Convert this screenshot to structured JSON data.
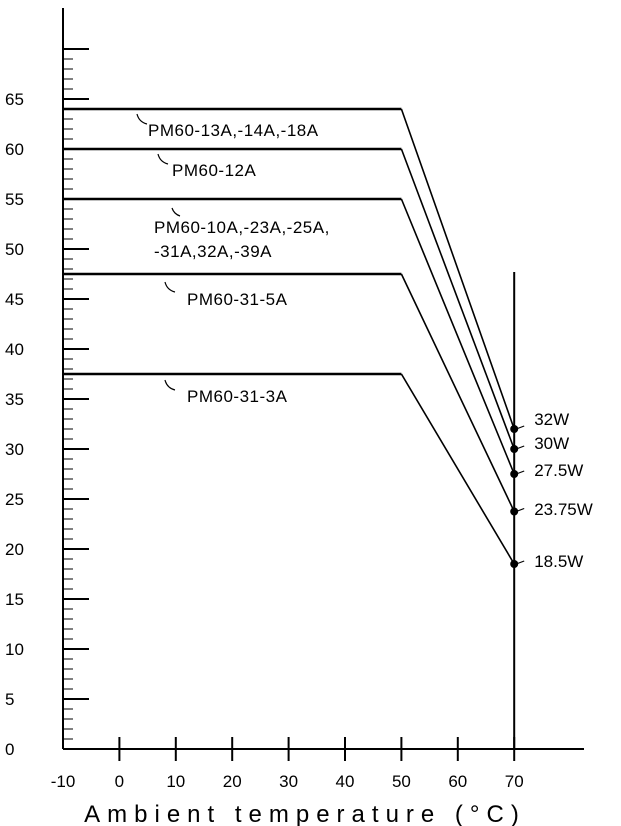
{
  "chart_data": {
    "type": "line",
    "title": "",
    "xlabel": "Ambient temperature (°C)",
    "ylabel": "",
    "xlim": [
      -10,
      82
    ],
    "ylim": [
      0,
      70
    ],
    "x_ticks": [
      -10,
      0,
      10,
      20,
      30,
      40,
      50,
      60,
      70
    ],
    "y_ticks": [
      0,
      5,
      10,
      15,
      20,
      25,
      30,
      35,
      40,
      45,
      50,
      55,
      60,
      65
    ],
    "grid": false,
    "series": [
      {
        "name": "PM60-13A,-14A,-18A",
        "label_lines": [
          "PM60-13A,-14A,-18A"
        ],
        "points": [
          [
            -10,
            64
          ],
          [
            50,
            64
          ],
          [
            70,
            32
          ]
        ],
        "end_label": "32W"
      },
      {
        "name": "PM60-12A",
        "label_lines": [
          "PM60-12A"
        ],
        "points": [
          [
            -10,
            60
          ],
          [
            50,
            60
          ],
          [
            70,
            30
          ]
        ],
        "end_label": "30W"
      },
      {
        "name": "PM60-10A,-23A,-25A,-31A,32A,-39A",
        "label_lines": [
          "PM60-10A,-23A,-25A,",
          "-31A,32A,-39A"
        ],
        "points": [
          [
            -10,
            55
          ],
          [
            50,
            55
          ],
          [
            70,
            27.5
          ]
        ],
        "end_label": "27.5W"
      },
      {
        "name": "PM60-31-5A",
        "label_lines": [
          "PM60-31-5A"
        ],
        "points": [
          [
            -10,
            47.5
          ],
          [
            50,
            47.5
          ],
          [
            70,
            23.75
          ]
        ],
        "end_label": "23.75W"
      },
      {
        "name": "PM60-31-3A",
        "label_lines": [
          "PM60-31-3A"
        ],
        "points": [
          [
            -10,
            37.5
          ],
          [
            50,
            37.5
          ],
          [
            70,
            18.5
          ]
        ],
        "end_label": "18.5W"
      }
    ]
  },
  "colors": {
    "line": "#000000",
    "background": "#ffffff"
  }
}
